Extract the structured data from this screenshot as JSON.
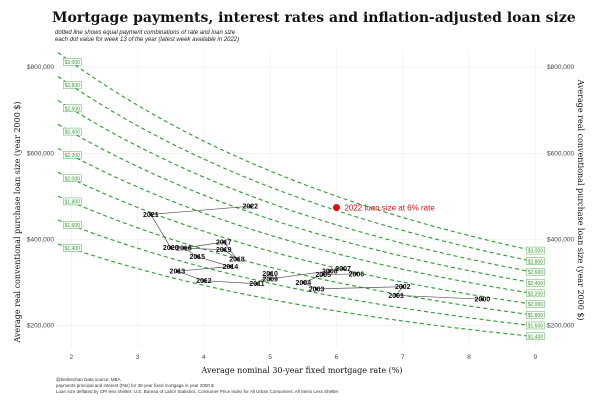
{
  "chart_data": {
    "type": "scatter",
    "title": "Mortgage payments, interest rates and inflation-adjusted loan size",
    "subtitle_lines": [
      "dotted line shows equal payment combinations of rate and loan size",
      "each dot value for week 13 of the year (latest week available in 2022)"
    ],
    "xlabel": "Average nominal 30-year fixed mortgage rate (%)",
    "ylabel_left": "Average real conventional purchase loan size (year 2000 $)",
    "ylabel_right": "Average real conventional purchase loan size (year 2000 $)",
    "xlim": [
      1.8,
      9.1
    ],
    "ylim": [
      150000,
      840000
    ],
    "x_ticks": [
      2,
      3,
      4,
      5,
      6,
      7,
      8,
      9
    ],
    "y_ticks": [
      {
        "value": 200000,
        "label": "$200,000"
      },
      {
        "value": 400000,
        "label": "$400,000"
      },
      {
        "value": 600000,
        "label": "$600,000"
      },
      {
        "value": 800000,
        "label": "$800,000"
      }
    ],
    "grid": true,
    "payment_lines": [
      {
        "label": "$1,400",
        "payment": 1400
      },
      {
        "label": "$1,600",
        "payment": 1600
      },
      {
        "label": "$1,800",
        "payment": 1800
      },
      {
        "label": "$2,000",
        "payment": 2000
      },
      {
        "label": "$2,200",
        "payment": 2200
      },
      {
        "label": "$2,400",
        "payment": 2400
      },
      {
        "label": "$2,600",
        "payment": 2600
      },
      {
        "label": "$2,800",
        "payment": 2800
      },
      {
        "label": "$3,000",
        "payment": 3000
      }
    ],
    "points": [
      {
        "year": "2000",
        "x": 8.2,
        "y": 261000
      },
      {
        "year": "2001",
        "x": 6.9,
        "y": 270000
      },
      {
        "year": "2002",
        "x": 7.0,
        "y": 290000
      },
      {
        "year": "2003",
        "x": 5.7,
        "y": 285000
      },
      {
        "year": "2004",
        "x": 5.5,
        "y": 300000
      },
      {
        "year": "2005",
        "x": 5.8,
        "y": 318000
      },
      {
        "year": "2006",
        "x": 6.3,
        "y": 320000
      },
      {
        "year": "2007",
        "x": 6.1,
        "y": 332000
      },
      {
        "year": "2008",
        "x": 5.9,
        "y": 327000
      },
      {
        "year": "2009",
        "x": 5.0,
        "y": 308000
      },
      {
        "year": "2010",
        "x": 5.0,
        "y": 321000
      },
      {
        "year": "2011",
        "x": 4.8,
        "y": 297000
      },
      {
        "year": "2012",
        "x": 4.0,
        "y": 304000
      },
      {
        "year": "2013",
        "x": 3.6,
        "y": 326000
      },
      {
        "year": "2014",
        "x": 4.4,
        "y": 337000
      },
      {
        "year": "2015",
        "x": 3.9,
        "y": 360000
      },
      {
        "year": "2016",
        "x": 3.7,
        "y": 380000
      },
      {
        "year": "2017",
        "x": 4.3,
        "y": 394000
      },
      {
        "year": "2018",
        "x": 4.5,
        "y": 354000
      },
      {
        "year": "2019",
        "x": 4.3,
        "y": 376000
      },
      {
        "year": "2020",
        "x": 3.5,
        "y": 381000
      },
      {
        "year": "2021",
        "x": 3.2,
        "y": 458000
      },
      {
        "year": "2022",
        "x": 4.7,
        "y": 477000
      }
    ],
    "highlight": {
      "label": "2022 loan size at 6% rate",
      "x": 6.0,
      "y": 474000,
      "color": "#dd1111"
    },
    "colors": {
      "payment_line": "#2e9a2e",
      "path": "#555555",
      "highlight": "#dd1111"
    }
  },
  "footnotes": [
    "@benkeohan Data source: MBA",
    "payments principal and interest (P&I) for 30-year fixed mortgage in year 2000 $",
    "Loan size deflated by CPI less shelter: U.S. Bureau of Labor Statistics, Consumer Price Index for All Urban Consumers: All Items Less Shelter"
  ]
}
